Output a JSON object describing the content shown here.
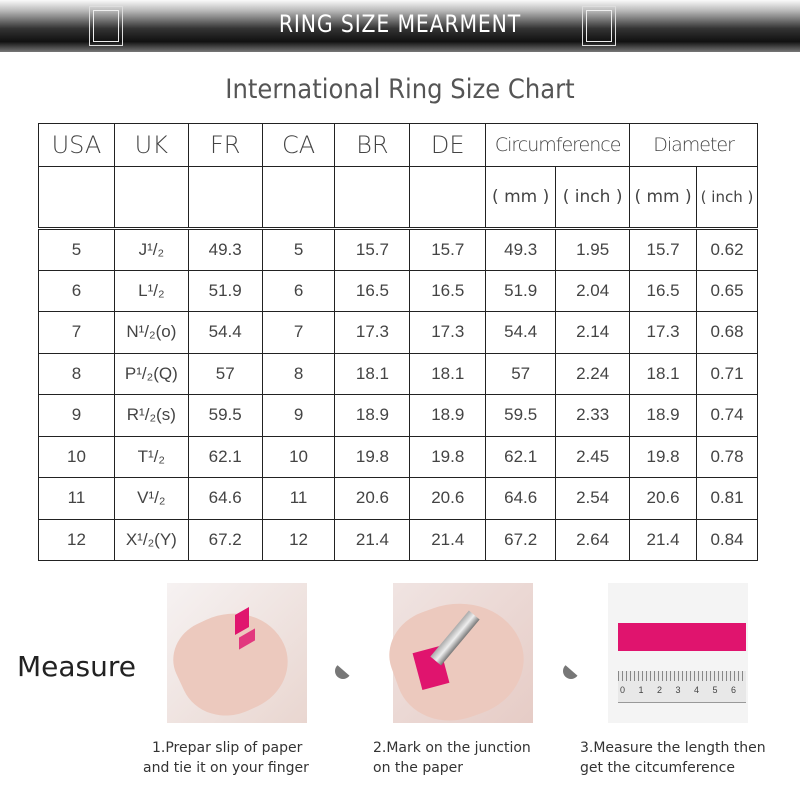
{
  "header": {
    "title": "RING SIZE MEARMENT"
  },
  "chart_title": "International Ring Size Chart",
  "table": {
    "columns": [
      "USA",
      "UK",
      "FR",
      "CA",
      "BR",
      "DE",
      "Circumference",
      "Diameter"
    ],
    "units": [
      "( mm )",
      "( inch )",
      "( mm )",
      "( inch )"
    ],
    "rows": [
      [
        "5",
        "J¹/₂",
        "49.3",
        "5",
        "15.7",
        "15.7",
        "49.3",
        "1.95",
        "15.7",
        "0.62"
      ],
      [
        "6",
        "L¹/₂",
        "51.9",
        "6",
        "16.5",
        "16.5",
        "51.9",
        "2.04",
        "16.5",
        "0.65"
      ],
      [
        "7",
        "N¹/₂(o)",
        "54.4",
        "7",
        "17.3",
        "17.3",
        "54.4",
        "2.14",
        "17.3",
        "0.68"
      ],
      [
        "8",
        "P¹/₂(Q)",
        "57",
        "8",
        "18.1",
        "18.1",
        "57",
        "2.24",
        "18.1",
        "0.71"
      ],
      [
        "9",
        "R¹/₂(s)",
        "59.5",
        "9",
        "18.9",
        "18.9",
        "59.5",
        "2.33",
        "18.9",
        "0.74"
      ],
      [
        "10",
        "T¹/₂",
        "62.1",
        "10",
        "19.8",
        "19.8",
        "62.1",
        "2.45",
        "19.8",
        "0.78"
      ],
      [
        "11",
        "V¹/₂",
        "64.6",
        "11",
        "20.6",
        "20.6",
        "64.6",
        "2.54",
        "20.6",
        "0.81"
      ],
      [
        "12",
        "X¹/₂(Y)",
        "67.2",
        "12",
        "21.4",
        "21.4",
        "67.2",
        "2.64",
        "21.4",
        "0.84"
      ]
    ]
  },
  "measure": {
    "label": "Measure",
    "steps": [
      {
        "line1": "1.Prepar slip of paper",
        "line2": "and tie it on your finger"
      },
      {
        "line1": "2.Mark on the junction",
        "line2": "on the paper"
      },
      {
        "line1": "3.Measure the length then",
        "line2": "get the citcumference"
      }
    ],
    "ruler_ticks": [
      "0",
      "1",
      "2",
      "3",
      "4",
      "5",
      "6"
    ]
  },
  "colors": {
    "accent": "#e0146e"
  }
}
